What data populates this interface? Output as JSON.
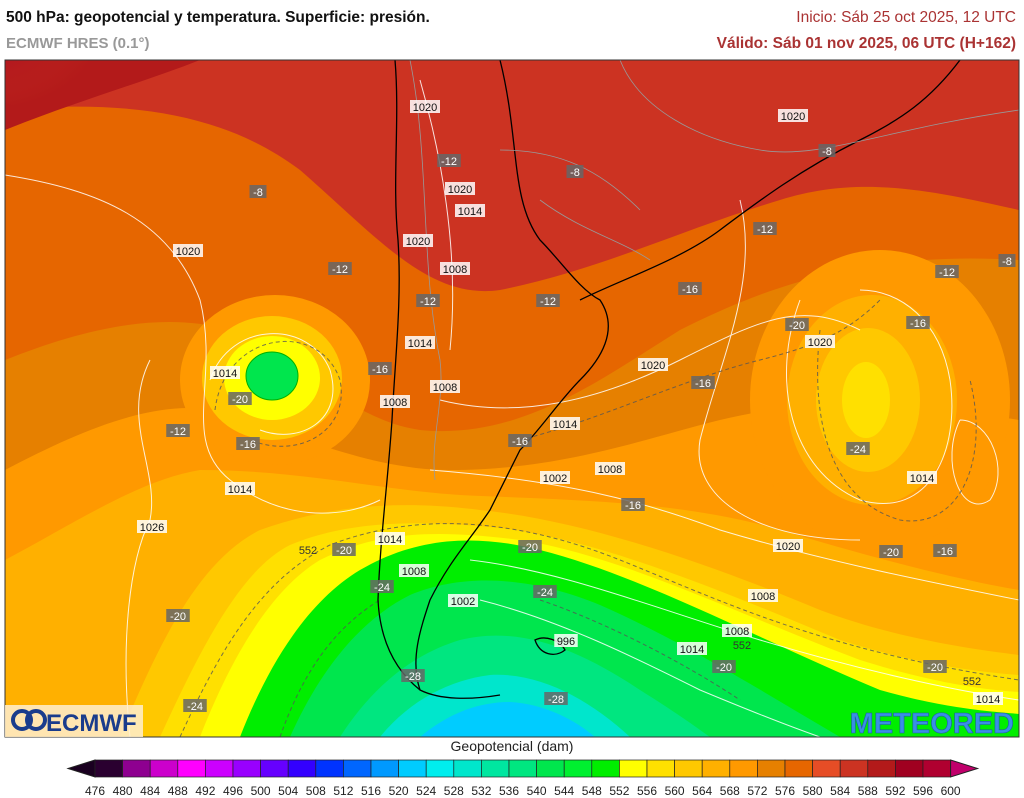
{
  "header": {
    "title": "500 hPa: geopotencial y temperatura. Superficie: presión.",
    "model": "ECMWF HRES (0.1°)",
    "init": "Inicio: Sáb 25 oct 2025, 12 UTC",
    "valid": "Válido: Sáb 01 nov 2025, 06 UTC (H+162)"
  },
  "logos": {
    "left": "ECMWF",
    "right": "METEORED"
  },
  "colorbar": {
    "title": "Geopotencial (dam)",
    "ticks": [
      476,
      480,
      484,
      488,
      492,
      496,
      500,
      504,
      508,
      512,
      516,
      520,
      524,
      528,
      532,
      536,
      540,
      544,
      548,
      552,
      556,
      560,
      564,
      568,
      572,
      576,
      580,
      584,
      588,
      592,
      596,
      600
    ],
    "colors": [
      "#2a0030",
      "#8e0090",
      "#cc00cc",
      "#ff00ff",
      "#cc00ff",
      "#9900ff",
      "#6600ff",
      "#3300ff",
      "#0033ff",
      "#0066ff",
      "#0099ff",
      "#00ccff",
      "#00eeee",
      "#00e6cc",
      "#00e6a0",
      "#00e680",
      "#00e64d",
      "#00f030",
      "#00ee00",
      "#ffff00",
      "#ffe000",
      "#ffc800",
      "#ffb000",
      "#ff9900",
      "#e68000",
      "#e66600",
      "#e64d26",
      "#cc3322",
      "#b31a1a",
      "#a00020",
      "#b00030"
    ],
    "under_color": "#1a0020",
    "over_color": "#c0006b"
  },
  "map_labels": {
    "pressure": [
      "1020",
      "1020",
      "1014",
      "1020",
      "1008",
      "1026",
      "1014",
      "1014",
      "1020",
      "1008",
      "1008",
      "1002",
      "1014",
      "1014",
      "1020",
      "1020",
      "1020",
      "1014",
      "1020",
      "1014",
      "1008",
      "1002",
      "1008",
      "996",
      "1008",
      "1014",
      "1014",
      "1008"
    ],
    "temperature": [
      "-8",
      "-8",
      "-12",
      "-8",
      "-12",
      "-12",
      "-16",
      "-20",
      "-12",
      "-16",
      "-12",
      "-16",
      "-16",
      "-20",
      "-24",
      "-20",
      "-24",
      "-16",
      "-20",
      "-16",
      "-24",
      "-20",
      "-16",
      "-20",
      "-28",
      "-28",
      "-24",
      "-12",
      "-8",
      "-12",
      "-16",
      "-20",
      "-20"
    ],
    "geopotential": [
      "552",
      "552",
      "552"
    ]
  }
}
